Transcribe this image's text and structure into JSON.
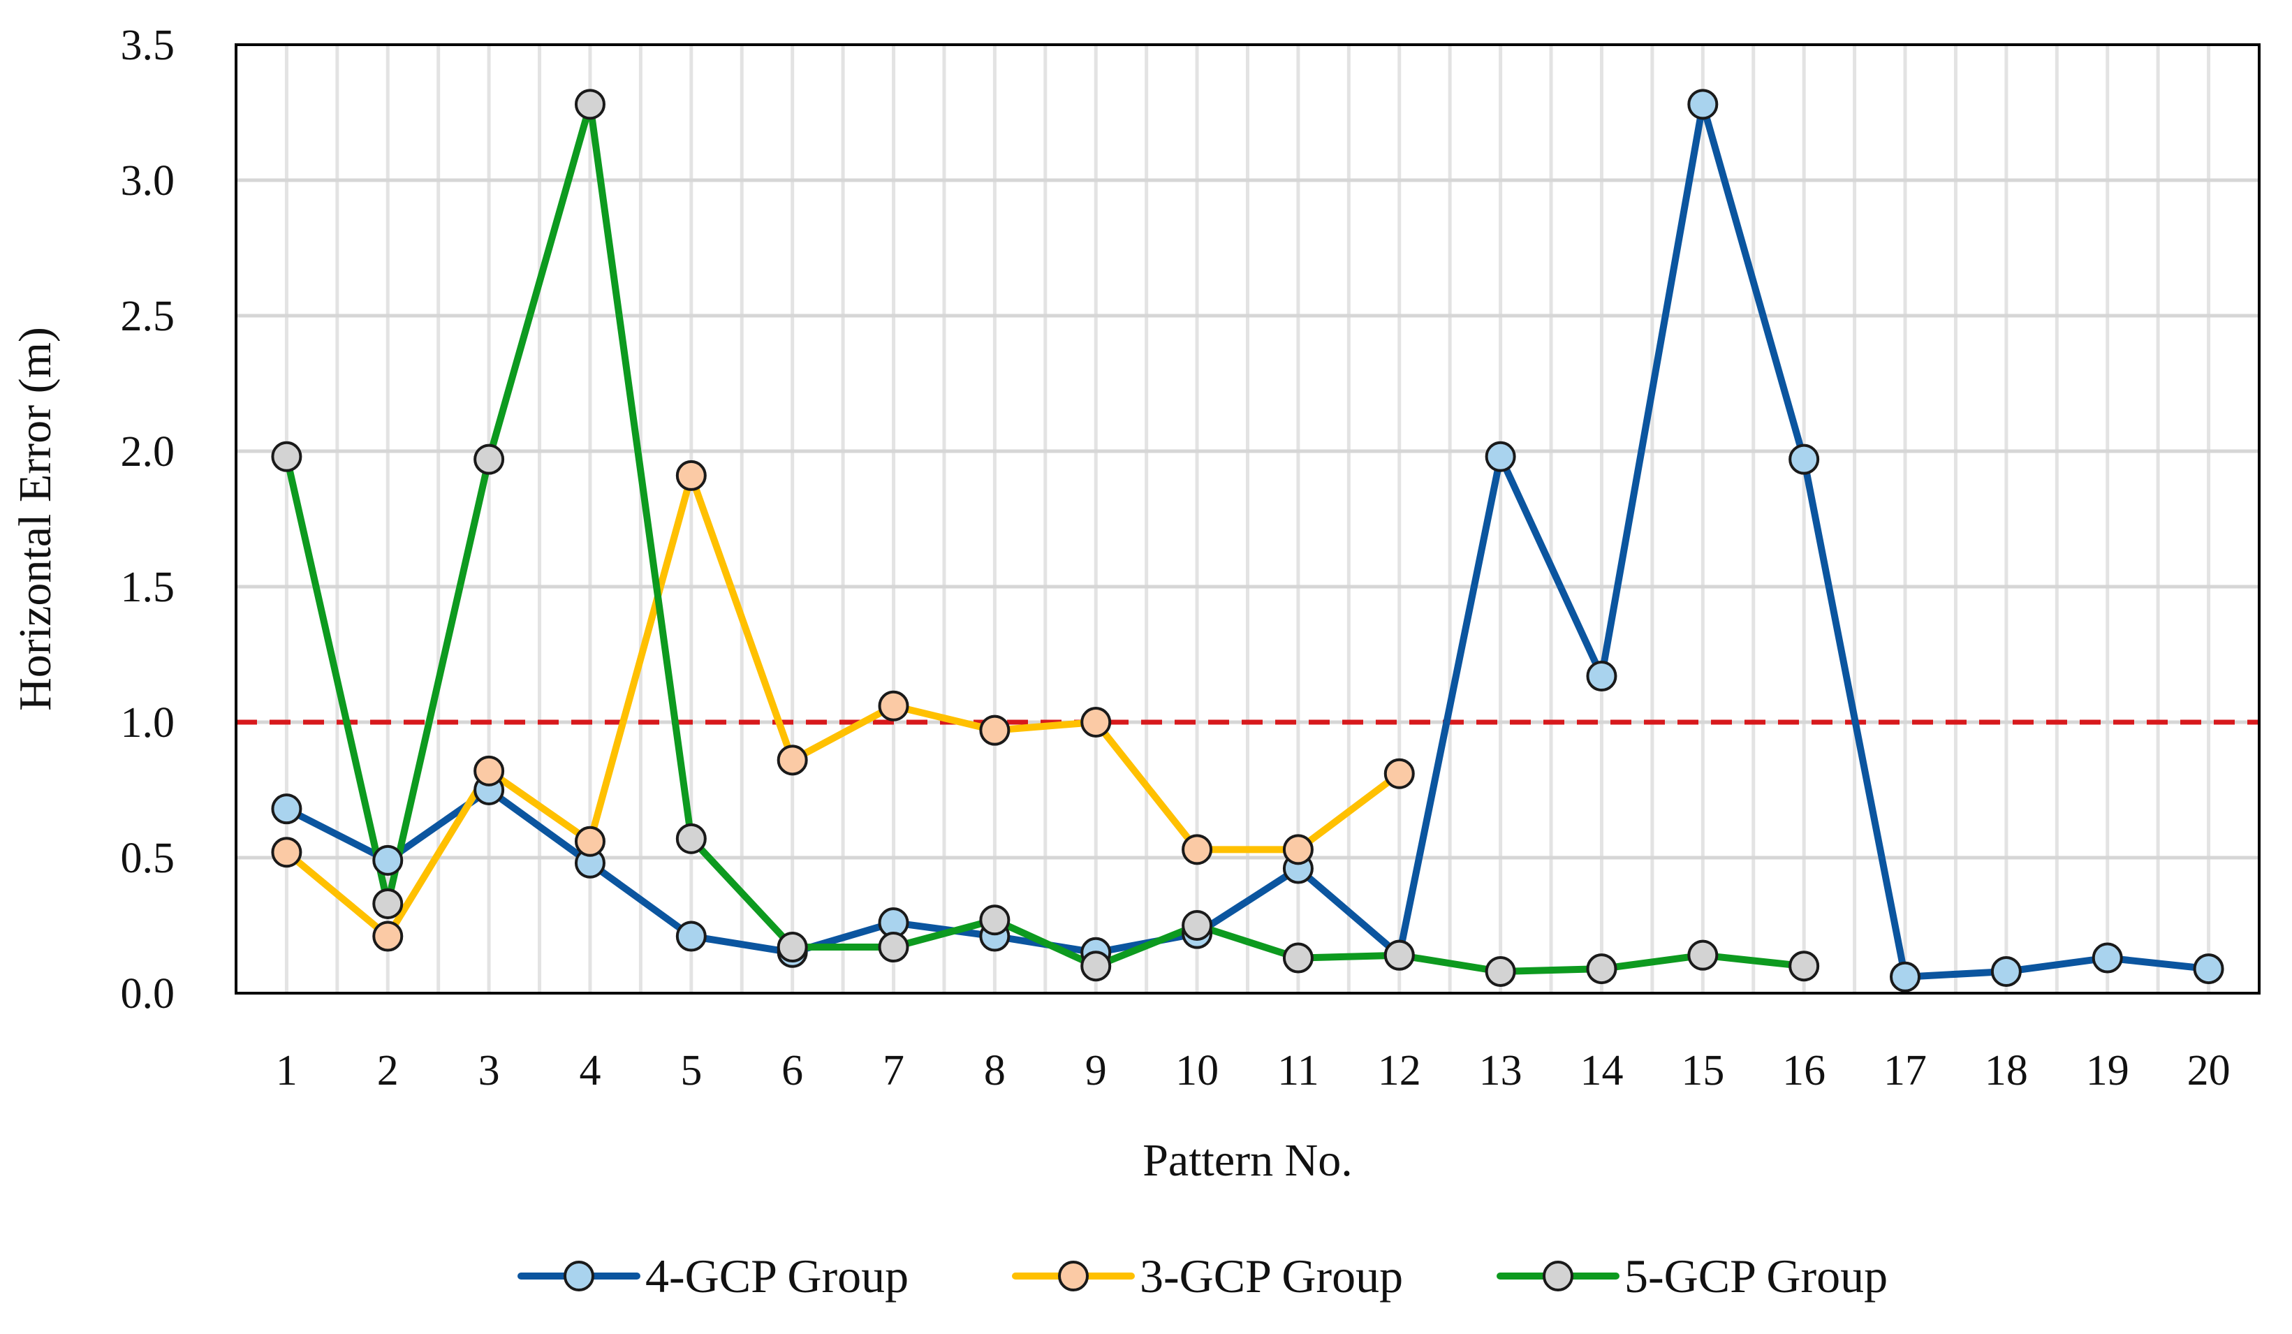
{
  "chart_data": {
    "type": "line",
    "title": "",
    "xlabel": "Pattern No.",
    "ylabel": "Horizontal Error (m)",
    "categories": [
      "1",
      "2",
      "3",
      "4",
      "5",
      "6",
      "7",
      "8",
      "9",
      "10",
      "11",
      "12",
      "13",
      "14",
      "15",
      "16",
      "17",
      "18",
      "19",
      "20"
    ],
    "ylim": [
      0,
      3.5
    ],
    "yticks": [
      "0.0",
      "0.5",
      "1.0",
      "1.5",
      "2.0",
      "2.5",
      "3.0",
      "3.5"
    ],
    "grid": true,
    "legend_position": "bottom",
    "reference_line": {
      "y": 1.0,
      "color": "#d7191c",
      "style": "dashed"
    },
    "series": [
      {
        "name": "4-GCP Group",
        "line_color": "#0b559f",
        "marker_color": "#a9d3ee",
        "values": [
          0.68,
          0.49,
          0.75,
          0.48,
          0.21,
          0.15,
          0.26,
          0.21,
          0.15,
          0.22,
          0.46,
          0.14,
          1.98,
          1.17,
          3.28,
          1.97,
          0.06,
          0.08,
          0.13,
          0.09
        ]
      },
      {
        "name": "3-GCP Group",
        "line_color": "#ffc000",
        "marker_color": "#fbcaa5",
        "values": [
          0.52,
          0.21,
          0.82,
          0.56,
          1.91,
          0.86,
          1.06,
          0.97,
          1.0,
          0.53,
          0.53,
          0.81,
          null,
          null,
          null,
          null,
          null,
          null,
          null,
          null
        ]
      },
      {
        "name": "5-GCP Group",
        "line_color": "#0d9a1f",
        "marker_color": "#d3d3d3",
        "values": [
          1.98,
          0.33,
          1.97,
          3.28,
          0.57,
          0.17,
          0.17,
          0.27,
          0.1,
          0.25,
          0.13,
          0.14,
          0.08,
          0.09,
          0.14,
          0.1,
          null,
          null,
          null,
          null
        ]
      }
    ]
  }
}
